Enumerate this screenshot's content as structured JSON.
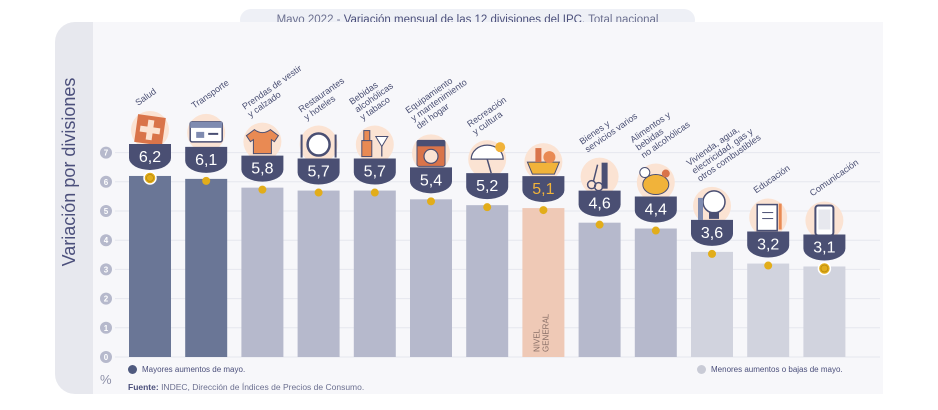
{
  "header": {
    "date": "Mayo 2022",
    "separator": " - ",
    "title": "Variación mensual de las 12 divisiones del IPC.",
    "subtitle": " Total nacional"
  },
  "axis": {
    "ylabel": "Variación por divisiones",
    "unit": "%"
  },
  "legend": {
    "high": "Mayores aumentos de mayo.",
    "low": "Menores aumentos o bajas de mayo."
  },
  "source": {
    "label": "Fuente:",
    "text": " INDEC, Dirección de Índices de Precios de Consumo."
  },
  "colors": {
    "high": "#6a7696",
    "mid": "#b6b9cc",
    "low": "#d1d3de",
    "general": "#efc9b6",
    "dot": "#e2ad1a",
    "badge": "#4a4f73",
    "icon_bg": "#fbe3d3"
  },
  "chart_data": {
    "type": "bar",
    "ylim": [
      0,
      7
    ],
    "yticks": [
      0,
      1,
      2,
      3,
      4,
      5,
      6,
      7
    ],
    "grid": true,
    "categories": [
      "Salud",
      "Transporte",
      "Prendas de vestir y calzado",
      "Restaurantes y hoteles",
      "Bebidas alcohólicas y tabaco",
      "Equipamiento y mantenimiento del hogar",
      "Recreación y cultura",
      "Nivel General",
      "Bienes y servicios varios",
      "Alimentos y bebidas no alcohólicas",
      "Vivienda, agua, electricidad, gas y otros combustibles",
      "Educación",
      "Comunicación"
    ],
    "values": [
      6.2,
      6.1,
      5.8,
      5.7,
      5.7,
      5.4,
      5.2,
      5.1,
      4.6,
      4.4,
      3.6,
      3.2,
      3.1
    ],
    "value_labels": [
      "6,2",
      "6,1",
      "5,8",
      "5,7",
      "5,7",
      "5,4",
      "5,2",
      "5,1",
      "4,6",
      "4,4",
      "3,6",
      "3,2",
      "3,1"
    ],
    "groups": [
      "high",
      "high",
      "mid",
      "mid",
      "mid",
      "mid",
      "mid",
      "general",
      "mid",
      "mid",
      "low",
      "low",
      "low"
    ],
    "category_lines": [
      [
        "Salud"
      ],
      [
        "Transporte"
      ],
      [
        "Prendas de vestir",
        "y calzado"
      ],
      [
        "Restaurantes",
        "y hoteles"
      ],
      [
        "Bebidas",
        "alcohólicas",
        "y tabaco"
      ],
      [
        "Equipamiento",
        "y mantenimiento",
        "del hogar"
      ],
      [
        "Recreación",
        "y cultura"
      ],
      [],
      [
        "Bienes y",
        "servicios varios"
      ],
      [
        "Alimentos y",
        "bebidas",
        "no alcohólicas"
      ],
      [
        "Vivienda, agua,",
        "electricidad, gas y",
        "otros combustibles"
      ],
      [
        "Educación"
      ],
      [
        "Comunicación"
      ]
    ],
    "bar_inner_label": [
      "NIVEL",
      "GENERAL"
    ],
    "icons": [
      "health-cross-icon",
      "sube-card-icon",
      "tshirt-icon",
      "plate-cutlery-icon",
      "drinks-icon",
      "washing-machine-icon",
      "umbrella-beach-icon",
      "shopping-basket-icon",
      "comb-scissors-icon",
      "chicken-food-icon",
      "lightbulb-icon",
      "notebook-icon",
      "smartphone-icon"
    ]
  }
}
